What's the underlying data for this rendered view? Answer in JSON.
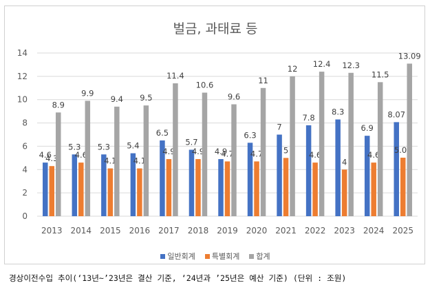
{
  "chart_data": {
    "type": "bar",
    "title": "벌금, 과태료 등",
    "categories": [
      "2013",
      "2014",
      "2015",
      "2016",
      "2017",
      "2018",
      "2019",
      "2020",
      "2021",
      "2022",
      "2023",
      "2024",
      "2025"
    ],
    "series": [
      {
        "name": "일반회계",
        "color": "#4472c4",
        "values": [
          4.6,
          5.3,
          5.3,
          5.4,
          6.5,
          5.7,
          4.9,
          6.3,
          7,
          7.8,
          8.3,
          6.9,
          8.07
        ],
        "labels": [
          "4.6",
          "5.3",
          "5.3",
          "5.4",
          "6.5",
          "5.7",
          "4.9",
          "6.3",
          "7",
          "7.8",
          "8.3",
          "6.9",
          "8.07"
        ]
      },
      {
        "name": "특별회계",
        "color": "#ed7d31",
        "values": [
          4.3,
          4.6,
          4.1,
          4.1,
          4.9,
          4.9,
          4.7,
          4.7,
          5,
          4.6,
          4,
          4.6,
          5.02
        ],
        "labels": [
          "4.3",
          "4.6",
          "4.1",
          "4.1",
          "4.9",
          "4.9",
          "4.7",
          "4.7",
          "5",
          "4.6",
          "4",
          "4.6",
          "5.02"
        ]
      },
      {
        "name": "합계",
        "color": "#a5a5a5",
        "values": [
          8.9,
          9.9,
          9.4,
          9.5,
          11.4,
          10.6,
          9.6,
          11,
          12,
          12.4,
          12.3,
          11.5,
          13.09
        ],
        "labels": [
          "8.9",
          "9.9",
          "9.4",
          "9.5",
          "11.4",
          "10.6",
          "9.6",
          "11",
          "12",
          "12.4",
          "12.3",
          "11.5",
          "13.09"
        ]
      }
    ],
    "ylim": [
      0,
      14
    ],
    "yticks": [
      "0",
      "2",
      "4",
      "6",
      "8",
      "10",
      "12",
      "14"
    ],
    "grid": true,
    "legend_position": "bottom"
  },
  "caption": "경상이전수입 추이(‘13년~’23년은 결산 기준, ‘24년과 ’25년은 예산 기준) (단위 : 조원)",
  "colors": {
    "gridline": "#d9d9d9",
    "axis_text": "#595959",
    "label_text": "#404040"
  }
}
